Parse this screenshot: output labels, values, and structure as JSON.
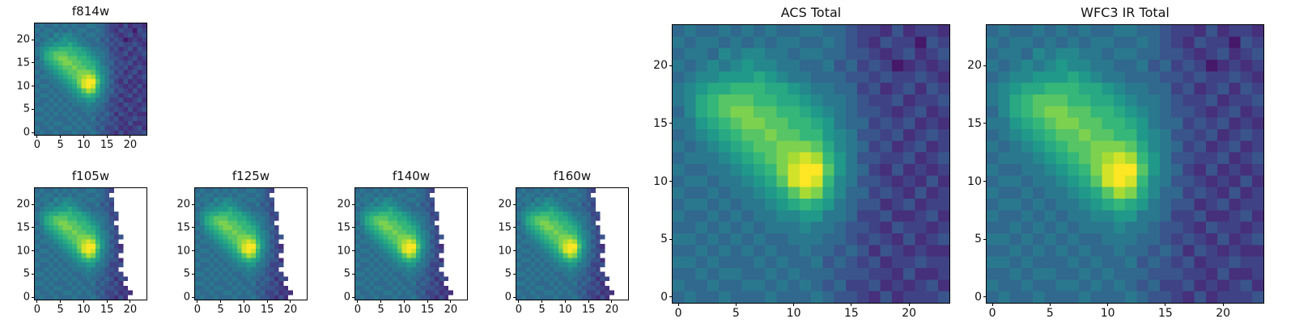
{
  "figure": {
    "background": "#ffffff",
    "text_color": "#111111",
    "axis_color": "#000000"
  },
  "chart_data": {
    "type": "heatmap",
    "colormap": "viridis",
    "colormap_stops": [
      "#440154",
      "#482878",
      "#3e4989",
      "#31688e",
      "#26828e",
      "#1f9e89",
      "#35b779",
      "#6ece58",
      "#b5de2b",
      "#fde725"
    ],
    "mask_color": "#ffffff",
    "grid_size": [
      24,
      24
    ],
    "x_range": [
      0,
      23
    ],
    "y_range": [
      0,
      23
    ],
    "xticks": [
      0,
      5,
      10,
      15,
      20
    ],
    "yticks": [
      0,
      5,
      10,
      15,
      20
    ],
    "value_scale": [
      0,
      15
    ],
    "grid": "off",
    "legend": "none",
    "intensity_rows_top_to_bottom": [
      "565565656556655433242332",
      "656656565665565432433143",
      "566576776656655443234234",
      "656767877665564534312323",
      "567788898766555443433432",
      "67899aaa9987665534234243",
      "679abbbaa998766543342334",
      "579abccbbaa9876544323423",
      "6689abccbbaa986553434232",
      "56789abbcbbaa87644342343",
      "656789abbcccb97653423423",
      "5666789abcdeda8644334234",
      "65566789aceffb8653242323",
      "566566789befea7644323242",
      "6556566789bdc97553432423",
      "56656566789a986544234233",
      "655656566778866533422342",
      "556565656667665443243323",
      "665656565566655434324234",
      "556565656556554542432322",
      "665655565655645434233433",
      "556566556565554443324223",
      "655655665656545334232342",
      "565565556555654432423334"
    ],
    "mask_start_col_top_to_bottom": [
      17,
      16,
      17,
      17,
      17,
      18,
      18,
      17,
      18,
      18,
      19,
      18,
      19,
      19,
      18,
      19,
      19,
      18,
      19,
      20,
      19,
      20,
      21,
      20
    ],
    "panels": [
      {
        "title": "f814w",
        "masked": false,
        "size": "small"
      },
      {
        "title": "f105w",
        "masked": true,
        "size": "small"
      },
      {
        "title": "f125w",
        "masked": true,
        "size": "small"
      },
      {
        "title": "f140w",
        "masked": true,
        "size": "small"
      },
      {
        "title": "f160w",
        "masked": true,
        "size": "small"
      },
      {
        "title": "ACS Total",
        "masked": false,
        "size": "large"
      },
      {
        "title": "WFC3 IR Total",
        "masked": false,
        "size": "large"
      }
    ]
  }
}
